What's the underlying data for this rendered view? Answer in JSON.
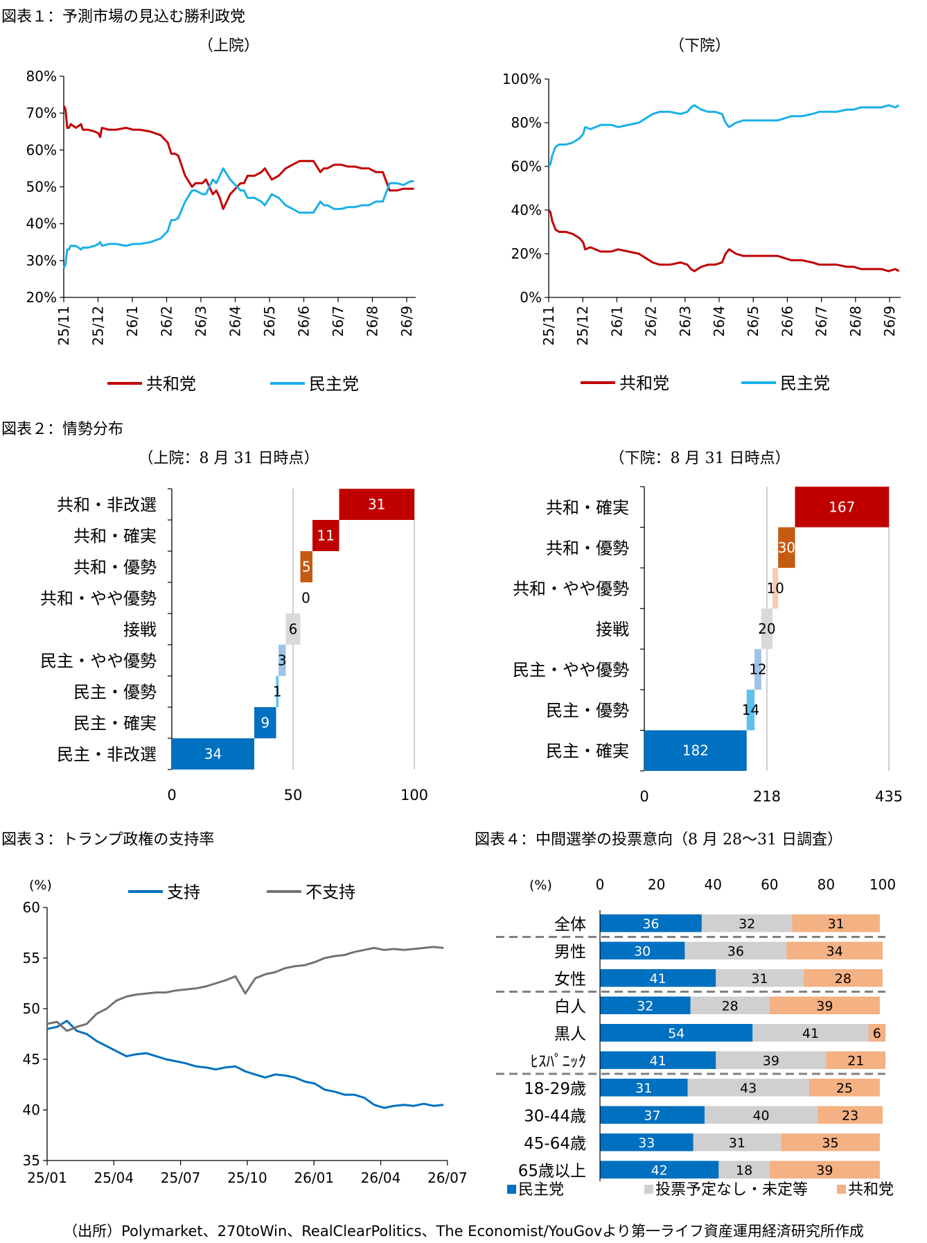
{
  "titles": {
    "fig1": "図表１：予測市場の見込む勝利政党",
    "fig2": "図表２：情勢分布",
    "fig3": "図表３：トランプ政権の支持率",
    "fig4": "図表４：中間選挙の投票意向（8 月 28～31 日調査）"
  },
  "subtitles": {
    "fig1_senate": "（上院）",
    "fig1_house": "（下院）",
    "fig2_senate": "（上院：8 月 31 日時点）",
    "fig2_house": "（下院：8 月 31 日時点）"
  },
  "footer": "（出所）Polymarket、270toWin、RealClearPolitics、The Economist/YouGovより第一ライフ資産運用経済研究所作成",
  "colors": {
    "rep": "#c00000",
    "dem": "#1ab0e8",
    "rep_likely": "#c55a11",
    "rep_lean": "#f8cbad",
    "tossup": "#d9d9d9",
    "dem_lean": "#9dc3e6",
    "dem_lean2": "#5bc2f0",
    "dem_solid": "#0070c0",
    "approve": "#0070c0",
    "disapprove": "#767171",
    "fig4_dem": "#0070c0",
    "fig4_none": "#d0d0d0",
    "fig4_rep": "#f4b183"
  },
  "chart_data": [
    {
      "id": "senate_odds",
      "type": "line",
      "x_ticks": [
        "25/11",
        "25/12",
        "26/1",
        "26/2",
        "26/3",
        "26/4",
        "26/5",
        "26/6",
        "26/7",
        "26/8",
        "26/9"
      ],
      "y_ticks": [
        "20%",
        "30%",
        "40%",
        "50%",
        "60%",
        "70%",
        "80%"
      ],
      "ylim": [
        20,
        80
      ],
      "xlim": [
        0,
        10.15
      ],
      "legend": [
        "共和党",
        "民主党"
      ],
      "series": [
        {
          "name": "共和党",
          "x": [
            0,
            0.05,
            0.1,
            0.15,
            0.2,
            0.35,
            0.5,
            0.55,
            0.7,
            0.9,
            1.0,
            1.05,
            1.1,
            1.3,
            1.5,
            1.8,
            2.0,
            2.2,
            2.5,
            2.8,
            3.0,
            3.1,
            3.2,
            3.3,
            3.5,
            3.7,
            3.8,
            4.0,
            4.1,
            4.2,
            4.3,
            4.4,
            4.5,
            4.6,
            4.8,
            5.0,
            5.1,
            5.2,
            5.3,
            5.5,
            5.7,
            5.8,
            6.0,
            6.2,
            6.4,
            6.6,
            6.8,
            7.0,
            7.2,
            7.4,
            7.5,
            7.6,
            7.8,
            8.0,
            8.2,
            8.4,
            8.6,
            8.8,
            9.0,
            9.2,
            9.4,
            9.6,
            9.8,
            10.0,
            10.1
          ],
          "values": [
            72,
            71,
            66,
            66,
            67,
            66,
            67,
            65.5,
            65.5,
            65,
            64.5,
            63.5,
            66,
            65.5,
            65.5,
            66,
            65.5,
            65.5,
            65,
            64,
            62,
            59,
            59,
            58.5,
            53,
            50,
            51,
            51,
            52,
            50,
            48,
            49,
            47,
            44,
            48,
            50,
            51,
            51,
            53,
            53,
            54,
            55,
            52,
            53,
            55,
            56,
            57,
            57,
            57,
            54,
            55,
            55,
            56,
            56,
            55.5,
            55.5,
            55,
            55,
            54,
            54,
            49,
            49,
            49.5,
            49.5,
            49.5
          ]
        },
        {
          "name": "民主党",
          "x": [
            0,
            0.05,
            0.1,
            0.15,
            0.2,
            0.35,
            0.5,
            0.55,
            0.7,
            0.9,
            1.0,
            1.05,
            1.1,
            1.3,
            1.5,
            1.8,
            2.0,
            2.2,
            2.5,
            2.8,
            3.0,
            3.1,
            3.2,
            3.3,
            3.5,
            3.7,
            3.8,
            4.0,
            4.1,
            4.2,
            4.3,
            4.4,
            4.5,
            4.6,
            4.8,
            5.0,
            5.1,
            5.2,
            5.3,
            5.5,
            5.7,
            5.8,
            6.0,
            6.2,
            6.4,
            6.6,
            6.8,
            7.0,
            7.2,
            7.4,
            7.5,
            7.6,
            7.8,
            8.0,
            8.2,
            8.4,
            8.6,
            8.8,
            9.0,
            9.2,
            9.4,
            9.6,
            9.8,
            10.0,
            10.1
          ],
          "values": [
            28,
            29,
            33,
            33,
            34,
            34,
            33,
            33.5,
            33.5,
            34,
            34.5,
            35,
            34,
            34.5,
            34.5,
            34,
            34.5,
            34.5,
            35,
            36,
            38,
            41,
            41,
            41.5,
            46,
            49,
            49,
            48,
            48,
            50,
            52,
            51,
            53,
            55,
            52,
            50,
            49,
            49,
            47,
            47,
            46,
            45,
            48,
            47,
            45,
            44,
            43,
            43,
            43,
            46,
            45,
            45,
            44,
            44,
            44.5,
            44.5,
            45,
            45,
            46,
            46,
            51,
            51,
            50.5,
            51.5,
            51.5
          ]
        }
      ]
    },
    {
      "id": "house_odds",
      "type": "line",
      "x_ticks": [
        "25/11",
        "25/12",
        "26/1",
        "26/2",
        "26/3",
        "26/4",
        "26/5",
        "26/6",
        "26/7",
        "26/8",
        "26/9"
      ],
      "y_ticks": [
        "0%",
        "20%",
        "40%",
        "60%",
        "80%",
        "100%"
      ],
      "ylim": [
        0,
        100
      ],
      "xlim": [
        0,
        10.15
      ],
      "legend": [
        "共和党",
        "民主党"
      ],
      "series": [
        {
          "name": "共和党",
          "x": [
            0,
            0.05,
            0.1,
            0.2,
            0.3,
            0.5,
            0.7,
            0.9,
            1.0,
            1.05,
            1.2,
            1.5,
            1.8,
            2.0,
            2.3,
            2.6,
            2.8,
            3.0,
            3.2,
            3.5,
            3.8,
            4.0,
            4.1,
            4.2,
            4.4,
            4.6,
            4.8,
            5.0,
            5.1,
            5.2,
            5.4,
            5.6,
            5.8,
            6.0,
            6.3,
            6.6,
            6.8,
            7.0,
            7.3,
            7.6,
            7.8,
            8.0,
            8.3,
            8.6,
            8.8,
            9.0,
            9.3,
            9.6,
            9.8,
            10.0,
            10.1
          ],
          "values": [
            40,
            39,
            35,
            31,
            30,
            30,
            29,
            27,
            25,
            22,
            23,
            21,
            21,
            22,
            21,
            20,
            18,
            16,
            15,
            15,
            16,
            15,
            13,
            12,
            14,
            15,
            15,
            16,
            20,
            22,
            20,
            19,
            19,
            19,
            19,
            19,
            18,
            17,
            17,
            16,
            15,
            15,
            15,
            14,
            14,
            13,
            13,
            13,
            12,
            13,
            12
          ]
        },
        {
          "name": "民主党",
          "x": [
            0,
            0.05,
            0.1,
            0.2,
            0.3,
            0.5,
            0.7,
            0.9,
            1.0,
            1.05,
            1.2,
            1.5,
            1.8,
            2.0,
            2.3,
            2.6,
            2.8,
            3.0,
            3.2,
            3.5,
            3.8,
            4.0,
            4.1,
            4.2,
            4.4,
            4.6,
            4.8,
            5.0,
            5.1,
            5.2,
            5.4,
            5.6,
            5.8,
            6.0,
            6.3,
            6.6,
            6.8,
            7.0,
            7.3,
            7.6,
            7.8,
            8.0,
            8.3,
            8.6,
            8.8,
            9.0,
            9.3,
            9.6,
            9.8,
            10.0,
            10.1
          ],
          "values": [
            60,
            61,
            65,
            69,
            70,
            70,
            71,
            73,
            75,
            78,
            77,
            79,
            79,
            78,
            79,
            80,
            82,
            84,
            85,
            85,
            84,
            85,
            87,
            88,
            86,
            85,
            85,
            84,
            80,
            78,
            80,
            81,
            81,
            81,
            81,
            81,
            82,
            83,
            83,
            84,
            85,
            85,
            85,
            86,
            86,
            87,
            87,
            87,
            88,
            87,
            88
          ]
        }
      ]
    },
    {
      "id": "senate_forecast",
      "type": "bar",
      "categories": [
        "共和・非改選",
        "共和・確実",
        "共和・優勢",
        "共和・やや優勢",
        "接戦",
        "民主・やや優勢",
        "民主・優勢",
        "民主・確実",
        "民主・非改選"
      ],
      "values": [
        31,
        11,
        5,
        0,
        6,
        3,
        1,
        9,
        34
      ],
      "x_ticks": [
        "0",
        "50",
        "100"
      ],
      "xlim": [
        0,
        100
      ],
      "midline": 50
    },
    {
      "id": "house_forecast",
      "type": "bar",
      "categories": [
        "共和・確実",
        "共和・優勢",
        "共和・やや優勢",
        "接戦",
        "民主・やや優勢",
        "民主・優勢",
        "民主・確実"
      ],
      "values": [
        167,
        30,
        10,
        20,
        12,
        14,
        182
      ],
      "x_ticks": [
        "0",
        "218",
        "435"
      ],
      "xlim": [
        0,
        435
      ],
      "midline": 218
    },
    {
      "id": "approval",
      "type": "line",
      "ylabel": "(%)",
      "x_ticks": [
        "25/01",
        "25/04",
        "25/07",
        "25/10",
        "26/01",
        "26/04",
        "26/07"
      ],
      "y_ticks": [
        "35",
        "40",
        "45",
        "50",
        "55",
        "60"
      ],
      "ylim": [
        35,
        60
      ],
      "xlim": [
        0,
        20.2
      ],
      "legend": [
        "支持",
        "不支持"
      ],
      "series": [
        {
          "name": "支持",
          "x": [
            0,
            0.5,
            1,
            1.5,
            2,
            2.5,
            3,
            3.5,
            4,
            4.5,
            5,
            5.5,
            6,
            6.5,
            7,
            7.5,
            8,
            8.5,
            9,
            9.5,
            10,
            10.5,
            11,
            11.5,
            12,
            12.5,
            13,
            13.5,
            14,
            14.5,
            15,
            15.5,
            16,
            16.5,
            17,
            17.5,
            18,
            18.5,
            19,
            19.5,
            20
          ],
          "values": [
            48,
            48.2,
            48.8,
            47.8,
            47.5,
            46.8,
            46.3,
            45.8,
            45.3,
            45.5,
            45.6,
            45.3,
            45.0,
            44.8,
            44.6,
            44.3,
            44.2,
            44.0,
            44.2,
            44.3,
            43.8,
            43.5,
            43.2,
            43.5,
            43.4,
            43.2,
            42.8,
            42.6,
            42.0,
            41.8,
            41.5,
            41.5,
            41.2,
            40.5,
            40.2,
            40.4,
            40.5,
            40.4,
            40.6,
            40.4,
            40.5
          ]
        },
        {
          "name": "不支持",
          "x": [
            0,
            0.5,
            1,
            1.5,
            2,
            2.5,
            3,
            3.5,
            4,
            4.5,
            5,
            5.5,
            6,
            6.5,
            7,
            7.5,
            8,
            8.5,
            9,
            9.5,
            10,
            10.5,
            11,
            11.5,
            12,
            12.5,
            13,
            13.5,
            14,
            14.5,
            15,
            15.5,
            16,
            16.5,
            17,
            17.5,
            18,
            18.5,
            19,
            19.5,
            20
          ],
          "values": [
            48.5,
            48.7,
            47.8,
            48.2,
            48.5,
            49.5,
            50.0,
            50.8,
            51.2,
            51.4,
            51.5,
            51.6,
            51.6,
            51.8,
            51.9,
            52.0,
            52.2,
            52.5,
            52.8,
            53.2,
            51.5,
            53.0,
            53.4,
            53.6,
            54.0,
            54.2,
            54.3,
            54.6,
            55.0,
            55.2,
            55.3,
            55.6,
            55.8,
            56.0,
            55.8,
            55.9,
            55.8,
            55.9,
            56.0,
            56.1,
            56.0
          ]
        }
      ]
    },
    {
      "id": "vote_intention",
      "type": "bar",
      "ylabel": "(%)",
      "x_ticks": [
        "0",
        "20",
        "40",
        "60",
        "80",
        "100"
      ],
      "xlim": [
        0,
        100
      ],
      "legend": [
        "民主党",
        "投票予定なし・未定等",
        "共和党"
      ],
      "categories": [
        "全体",
        "男性",
        "女性",
        "白人",
        "黒人",
        "ﾋｽﾊﾟﾆｯｸ",
        "18-29歳",
        "30-44歳",
        "45-64歳",
        "65歳以上"
      ],
      "series": [
        {
          "name": "民主党",
          "values": [
            36,
            30,
            41,
            32,
            54,
            41,
            31,
            37,
            33,
            42
          ]
        },
        {
          "name": "投票予定なし・未定等",
          "values": [
            32,
            36,
            31,
            28,
            41,
            39,
            43,
            40,
            31,
            18
          ]
        },
        {
          "name": "共和党",
          "values": [
            31,
            34,
            28,
            39,
            6,
            21,
            25,
            23,
            35,
            39
          ]
        }
      ]
    }
  ]
}
